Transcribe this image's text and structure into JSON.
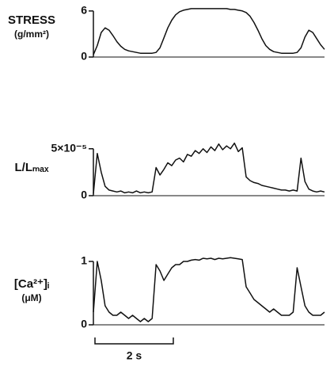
{
  "chart_data": [
    {
      "type": "line",
      "ylabel": "STRESS",
      "yunit": "(g/mm²)",
      "color": "#111",
      "xlim": [
        0,
        5.9
      ],
      "ylim": [
        0,
        6.5
      ],
      "yticks": [
        0,
        6
      ],
      "x": [
        0,
        0.1,
        0.2,
        0.3,
        0.4,
        0.5,
        0.6,
        0.7,
        0.8,
        0.9,
        1.0,
        1.1,
        1.2,
        1.3,
        1.4,
        1.5,
        1.6,
        1.7,
        1.8,
        1.9,
        2.0,
        2.1,
        2.2,
        2.3,
        2.4,
        2.5,
        2.6,
        2.7,
        2.8,
        2.9,
        3.0,
        3.1,
        3.2,
        3.3,
        3.4,
        3.5,
        3.6,
        3.7,
        3.8,
        3.9,
        4.0,
        4.1,
        4.2,
        4.3,
        4.4,
        4.5,
        4.6,
        4.7,
        4.8,
        4.9,
        5.0,
        5.1,
        5.2,
        5.3,
        5.4,
        5.5,
        5.6,
        5.7,
        5.8,
        5.9
      ],
      "values": [
        0.3,
        1.5,
        3.2,
        3.8,
        3.5,
        2.8,
        2.0,
        1.4,
        1.0,
        0.8,
        0.7,
        0.6,
        0.5,
        0.5,
        0.5,
        0.5,
        0.6,
        1.2,
        2.5,
        3.8,
        4.8,
        5.5,
        5.9,
        6.1,
        6.2,
        6.3,
        6.3,
        6.3,
        6.3,
        6.3,
        6.3,
        6.3,
        6.3,
        6.3,
        6.3,
        6.2,
        6.2,
        6.1,
        6.0,
        5.8,
        5.3,
        4.5,
        3.5,
        2.4,
        1.5,
        1.0,
        0.7,
        0.6,
        0.5,
        0.5,
        0.5,
        0.5,
        0.6,
        1.2,
        2.6,
        3.5,
        3.2,
        2.4,
        1.6,
        1.0
      ]
    },
    {
      "type": "line",
      "ylabel": "L/Lₘₐₓ",
      "color": "#111",
      "xlim": [
        0,
        5.9
      ],
      "ylim": [
        0,
        6.5e-05
      ],
      "yticks": [
        0,
        {
          "value": 5e-05,
          "label": "5×10⁻⁵"
        }
      ],
      "x": [
        0,
        0.1,
        0.2,
        0.3,
        0.4,
        0.5,
        0.6,
        0.7,
        0.8,
        0.9,
        1.0,
        1.1,
        1.2,
        1.3,
        1.4,
        1.5,
        1.6,
        1.7,
        1.8,
        1.9,
        2.0,
        2.1,
        2.2,
        2.3,
        2.4,
        2.5,
        2.6,
        2.7,
        2.8,
        2.9,
        3.0,
        3.1,
        3.2,
        3.3,
        3.4,
        3.5,
        3.6,
        3.7,
        3.8,
        3.9,
        4.0,
        4.1,
        4.2,
        4.3,
        4.4,
        4.5,
        4.6,
        4.7,
        4.8,
        4.9,
        5.0,
        5.1,
        5.2,
        5.3,
        5.4,
        5.5,
        5.6,
        5.7,
        5.8,
        5.9
      ],
      "values": [
        2e-06,
        4.5e-05,
        2.5e-05,
        1e-05,
        6e-06,
        5e-06,
        4e-06,
        5e-06,
        3e-06,
        4e-06,
        3e-06,
        5e-06,
        3e-06,
        4e-06,
        3e-06,
        4e-06,
        3e-05,
        2.2e-05,
        2.8e-05,
        3.5e-05,
        3.2e-05,
        3.8e-05,
        4e-05,
        3.6e-05,
        4.4e-05,
        4.2e-05,
        4.8e-05,
        4.5e-05,
        5e-05,
        4.6e-05,
        5.2e-05,
        4.8e-05,
        5.5e-05,
        4.9e-05,
        5.3e-05,
        5e-05,
        5.6e-05,
        4.7e-05,
        5.1e-05,
        2e-05,
        1.6e-05,
        1.4e-05,
        1.3e-05,
        1.1e-05,
        1e-05,
        9e-06,
        8e-06,
        7e-06,
        6e-06,
        6e-06,
        5e-06,
        6e-06,
        5e-06,
        4e-05,
        1.5e-05,
        7e-06,
        5e-06,
        4e-06,
        5e-06,
        4e-06
      ]
    },
    {
      "type": "line",
      "ylabel": "[Ca²⁺]ᵢ",
      "yunit": "(μM)",
      "color": "#111",
      "xlim": [
        0,
        5.9
      ],
      "ylim": [
        0,
        1.2
      ],
      "yticks": [
        0,
        1
      ],
      "x": [
        0,
        0.1,
        0.2,
        0.3,
        0.4,
        0.5,
        0.6,
        0.7,
        0.8,
        0.9,
        1.0,
        1.1,
        1.2,
        1.3,
        1.4,
        1.5,
        1.6,
        1.7,
        1.8,
        1.9,
        2.0,
        2.1,
        2.2,
        2.3,
        2.4,
        2.5,
        2.6,
        2.7,
        2.8,
        2.9,
        3.0,
        3.1,
        3.2,
        3.3,
        3.4,
        3.5,
        3.6,
        3.7,
        3.8,
        3.9,
        4.0,
        4.1,
        4.2,
        4.3,
        4.4,
        4.5,
        4.6,
        4.7,
        4.8,
        4.9,
        5.0,
        5.1,
        5.2,
        5.3,
        5.4,
        5.5,
        5.6,
        5.7,
        5.8,
        5.9
      ],
      "values": [
        0.2,
        1.0,
        0.7,
        0.3,
        0.2,
        0.15,
        0.15,
        0.2,
        0.15,
        0.1,
        0.15,
        0.1,
        0.05,
        0.1,
        0.05,
        0.1,
        0.95,
        0.85,
        0.7,
        0.8,
        0.9,
        0.95,
        0.95,
        1.0,
        1.0,
        1.02,
        1.03,
        1.02,
        1.05,
        1.04,
        1.05,
        1.03,
        1.05,
        1.04,
        1.05,
        1.06,
        1.05,
        1.04,
        1.03,
        0.6,
        0.5,
        0.4,
        0.35,
        0.3,
        0.25,
        0.2,
        0.25,
        0.2,
        0.15,
        0.15,
        0.15,
        0.2,
        0.9,
        0.6,
        0.3,
        0.2,
        0.15,
        0.15,
        0.15,
        0.2
      ],
      "scale_bar": {
        "length": 2,
        "label": "2 s"
      }
    }
  ]
}
